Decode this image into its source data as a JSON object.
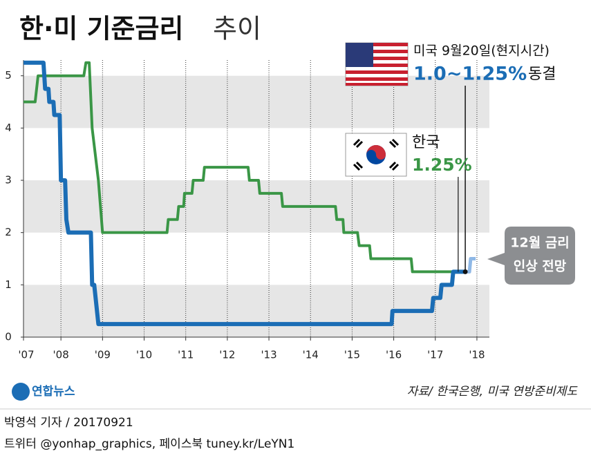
{
  "chart_data": {
    "type": "line",
    "title": "한·미 기준금리",
    "title_suffix": "추이",
    "xlim": [
      2007.1,
      2018.3
    ],
    "ylim": [
      0,
      5.3
    ],
    "xticks": [
      {
        "value": 2007,
        "label": "'07"
      },
      {
        "value": 2008,
        "label": "'08"
      },
      {
        "value": 2009,
        "label": "'09"
      },
      {
        "value": 2010,
        "label": "'10"
      },
      {
        "value": 2011,
        "label": "'11"
      },
      {
        "value": 2012,
        "label": "'12"
      },
      {
        "value": 2013,
        "label": "'13"
      },
      {
        "value": 2014,
        "label": "'14"
      },
      {
        "value": 2015,
        "label": "'15"
      },
      {
        "value": 2016,
        "label": "'16"
      },
      {
        "value": 2017,
        "label": "'17"
      },
      {
        "value": 2018,
        "label": "'18"
      }
    ],
    "yticks": [
      0,
      1,
      2,
      3,
      4,
      5
    ],
    "series": [
      {
        "color": "#1b6db5",
        "x": [
          2007.1,
          2007.58,
          2007.62,
          2007.7,
          2007.72,
          2007.82,
          2007.84,
          2007.97,
          2008.0,
          2008.1,
          2008.13,
          2008.18,
          2008.72,
          2008.75,
          2008.8,
          2008.9,
          2015.95,
          2015.97,
          2016.92,
          2016.95,
          2017.12,
          2017.15,
          2017.4,
          2017.43,
          2017.72
        ],
        "values": [
          5.25,
          5.25,
          4.75,
          4.75,
          4.5,
          4.5,
          4.25,
          4.25,
          3,
          3,
          2.25,
          2,
          2,
          1,
          1,
          0.25,
          0.25,
          0.5,
          0.5,
          0.75,
          0.75,
          1,
          1,
          1.25,
          1.25
        ]
      },
      {
        "color": "#3a9646",
        "x": [
          2007.1,
          2007.38,
          2007.45,
          2008.55,
          2008.6,
          2008.68,
          2008.75,
          2008.9,
          2009.0,
          2010.55,
          2010.58,
          2010.8,
          2010.83,
          2010.95,
          2010.97,
          2011.15,
          2011.18,
          2011.42,
          2011.45,
          2012.5,
          2012.53,
          2012.75,
          2012.78,
          2013.3,
          2013.33,
          2014.6,
          2014.63,
          2014.78,
          2014.8,
          2015.13,
          2015.17,
          2015.42,
          2015.45,
          2016.42,
          2016.45,
          2017.45
        ],
        "values": [
          4.5,
          4.5,
          5,
          5,
          5.25,
          5.25,
          4,
          3,
          2,
          2,
          2.25,
          2.25,
          2.5,
          2.5,
          2.75,
          2.75,
          3,
          3,
          3.25,
          3.25,
          3,
          3,
          2.75,
          2.75,
          2.5,
          2.5,
          2.25,
          2.25,
          2,
          2,
          1.75,
          1.75,
          1.5,
          1.5,
          1.25,
          1.25
        ]
      },
      {
        "color": "#8fb8e6",
        "x": [
          2017.72,
          2017.82,
          2017.85,
          2017.97
        ],
        "values": [
          1.25,
          1.25,
          1.5,
          1.5
        ]
      }
    ],
    "us_note": "미국 9월20일(현지시간)",
    "us_rate": "1.0~1.25%",
    "us_status": "동결",
    "kr_note": "한국",
    "kr_rate": "1.25%",
    "callout": [
      "12월 금리",
      "인상 전망"
    ],
    "logo": "연합뉴스",
    "source": "자료/ 한국은행, 미국 연방준비제도",
    "byline": "박영석 기자 / 20170921",
    "social": "트위터 @yonhap_graphics, 페이스북 tuney.kr/LeYN1"
  }
}
